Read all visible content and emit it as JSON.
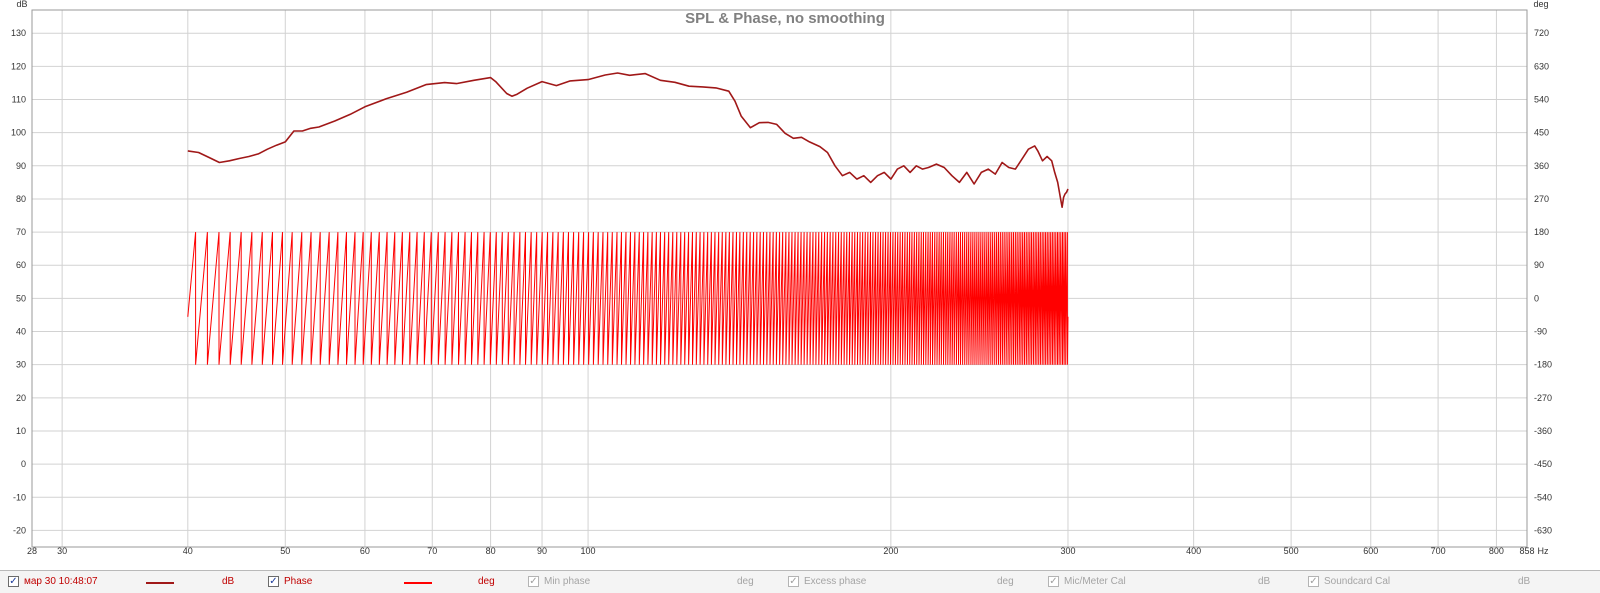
{
  "chart_data": {
    "type": "line",
    "title": "SPL & Phase, no smoothing",
    "xlabel": "Hz",
    "x_scale": "log",
    "xlim": [
      28,
      858
    ],
    "x_ticks": [
      28,
      30,
      40,
      50,
      60,
      70,
      80,
      90,
      100,
      200,
      300,
      400,
      500,
      600,
      700,
      800,
      858
    ],
    "ylabel_left": "dB",
    "ylim_left": [
      -25,
      137
    ],
    "y_ticks_left": [
      130,
      120,
      110,
      100,
      90,
      80,
      70,
      60,
      50,
      40,
      30,
      20,
      10,
      0,
      -10,
      -20
    ],
    "ylabel_right": "deg",
    "y_ticks_right": [
      720,
      630,
      540,
      450,
      360,
      270,
      180,
      90,
      0,
      -90,
      -180,
      -270,
      -360,
      -450,
      -540,
      -630
    ],
    "grid": true,
    "legend_position": "bottom",
    "series": [
      {
        "name": "SPL",
        "axis": "left",
        "color": "#a01818",
        "x": [
          40,
          41,
          42,
          43,
          44,
          45,
          46,
          47,
          48,
          49,
          50,
          51,
          52,
          53,
          54,
          56,
          58,
          60,
          63,
          66,
          69,
          72,
          74,
          77,
          80,
          81,
          83,
          84,
          85,
          87,
          90,
          93,
          96,
          100,
          104,
          107,
          110,
          114,
          118,
          122,
          126,
          130,
          134,
          138,
          140,
          142,
          145,
          148,
          151,
          154,
          157,
          160,
          163,
          166,
          170,
          173,
          176,
          179,
          182,
          185,
          188,
          191,
          194,
          197,
          200,
          203,
          206,
          209,
          212,
          215,
          218,
          222,
          226,
          230,
          234,
          238,
          242,
          246,
          250,
          254,
          258,
          262,
          266,
          270,
          274,
          278,
          280,
          283,
          286,
          289,
          291,
          293,
          295,
          296,
          297,
          298,
          299,
          300
        ],
        "values": [
          94.5,
          94,
          92.5,
          91,
          91.5,
          92.2,
          92.8,
          93.6,
          95,
          96.2,
          97.2,
          100.5,
          100.5,
          101.3,
          101.7,
          103.5,
          105.5,
          107.8,
          110.2,
          112.2,
          114.5,
          115.1,
          114.8,
          115.8,
          116.6,
          115.3,
          111.8,
          111,
          111.6,
          113.4,
          115.4,
          114.2,
          115.6,
          116,
          117.4,
          118,
          117.3,
          117.8,
          115.8,
          115.2,
          114,
          113.8,
          113.5,
          112.5,
          109.5,
          105,
          101.5,
          103,
          103.1,
          102.5,
          99.8,
          98.3,
          98.6,
          97.2,
          95.8,
          94,
          90,
          87,
          88,
          86,
          87,
          85,
          87,
          88,
          86,
          89,
          90,
          88,
          90,
          89,
          89.5,
          90.5,
          89.5,
          87,
          85,
          88,
          84.5,
          88,
          89,
          87.5,
          91,
          89.5,
          89,
          92,
          95,
          96,
          94.5,
          91.5,
          92.8,
          91.5,
          88,
          85,
          80,
          77.5,
          80.5,
          81.5,
          82,
          83
        ]
      },
      {
        "name": "Phase",
        "axis": "right",
        "color": "#ff0000",
        "x_range": [
          40,
          300
        ],
        "wrap_range_deg": [
          -180,
          180
        ],
        "start_phase_deg": -50,
        "wrap_cycles": 232
      }
    ]
  },
  "legend": [
    {
      "checked": true,
      "label": "мар 30 10:48:07",
      "unit": "dB",
      "active": true,
      "swatch": "#a01818"
    },
    {
      "checked": true,
      "label": "Phase",
      "unit": "deg",
      "active": true,
      "swatch": "#ff0000"
    },
    {
      "checked": true,
      "label": "Min phase",
      "unit": "deg",
      "active": false
    },
    {
      "checked": true,
      "label": "Excess phase",
      "unit": "deg",
      "active": false
    },
    {
      "checked": true,
      "label": "Mic/Meter Cal",
      "unit": "dB",
      "active": false
    },
    {
      "checked": true,
      "label": "Soundcard Cal",
      "unit": "dB",
      "active": false
    }
  ],
  "colors": {
    "grid": "#d2d2d2",
    "axis_text": "#333333",
    "title": "#808080",
    "spl": "#a01818",
    "phase": "#ff0000"
  }
}
